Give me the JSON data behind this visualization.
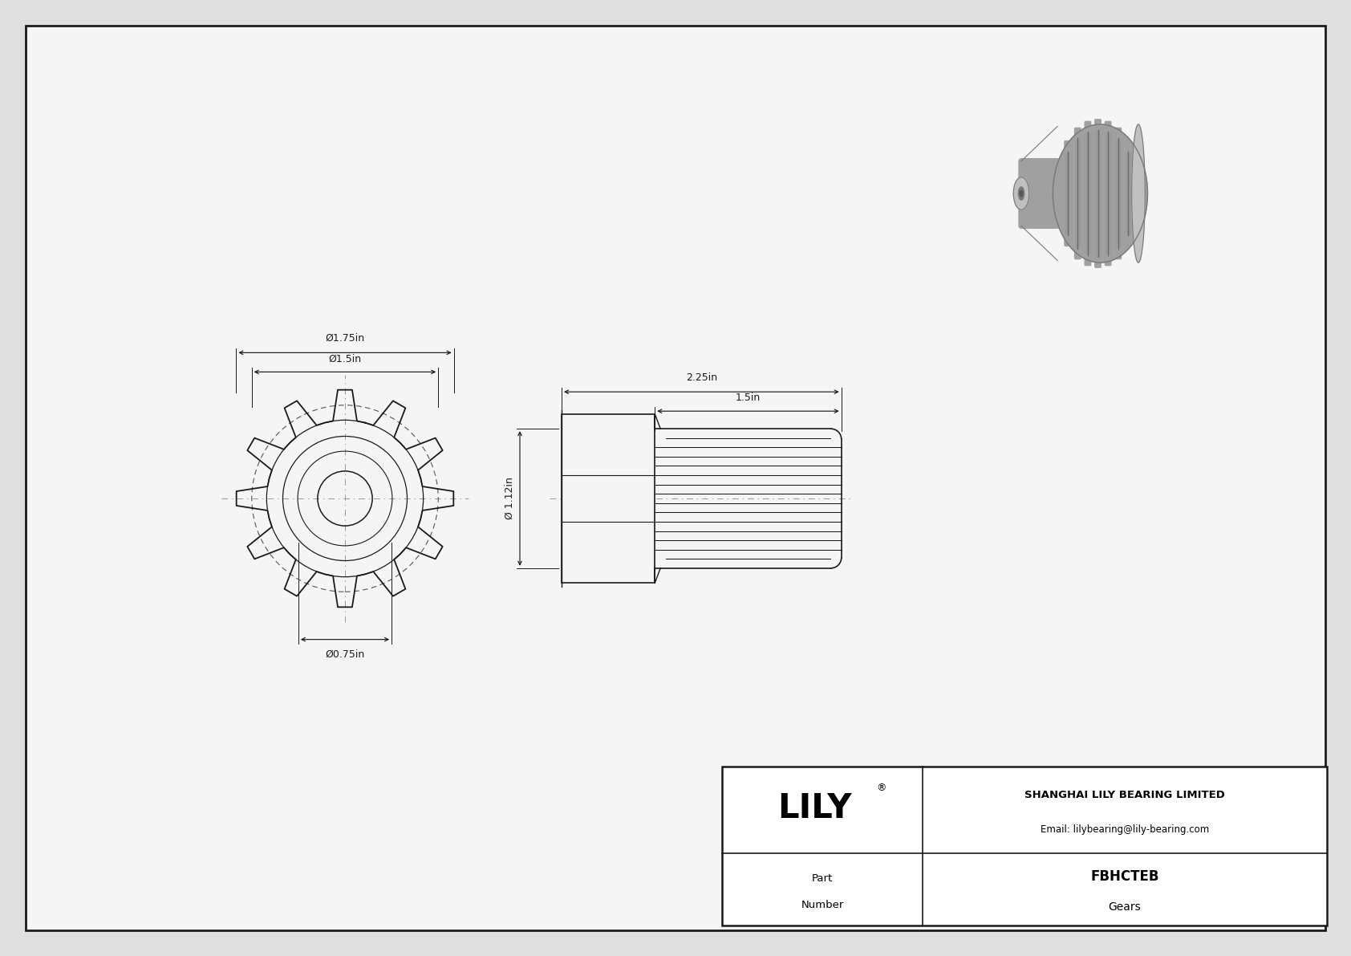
{
  "bg_color": "#e0e0e0",
  "drawing_bg": "#f5f5f5",
  "line_color": "#1a1a1a",
  "dim_color": "#1a1a1a",
  "company": "SHANGHAI LILY BEARING LIMITED",
  "email": "Email: lilybearing@lily-bearing.com",
  "logo": "LILY",
  "part_number": "FBHCTEB",
  "part_type": "Gears",
  "dim_outer": "Ø1.75in",
  "dim_pitch": "Ø1.5in",
  "dim_bore": "Ø0.75in",
  "dim_side_dia": "Ø 1.12in",
  "dim_total_len": "2.25in",
  "dim_gear_len": "1.5in",
  "num_teeth": 12,
  "scale": 1.55
}
